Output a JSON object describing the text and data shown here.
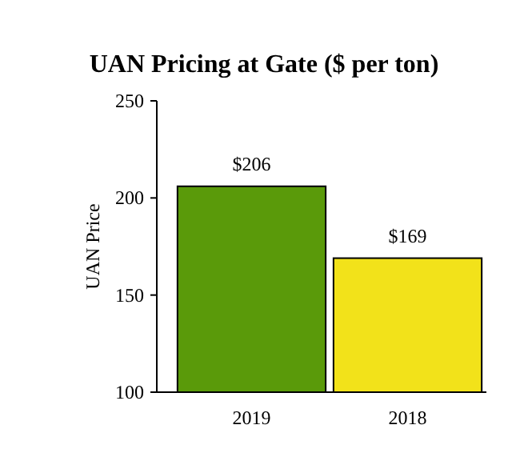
{
  "chart_data": {
    "type": "bar",
    "title": "UAN Pricing at Gate ($ per ton)",
    "ylabel": "UAN Price",
    "categories": [
      "2019",
      "2018"
    ],
    "values": [
      206,
      169
    ],
    "colors": [
      "#5a9a0a",
      "#f2e21a"
    ],
    "value_labels": [
      "$206",
      "$169"
    ],
    "ylim": [
      100,
      250
    ],
    "yticks": [
      100,
      150,
      200,
      250
    ],
    "grid": false
  }
}
